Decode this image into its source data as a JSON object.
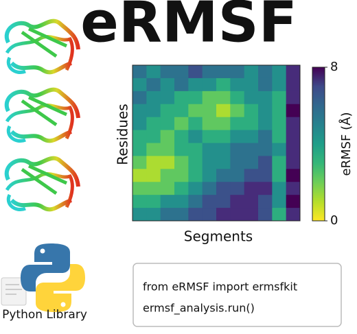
{
  "title": "eRMSF",
  "chart_data": {
    "type": "heatmap",
    "xlabel": "Segments",
    "ylabel": "Residues",
    "colorbar_label": "eRMSF (Å)",
    "zlim": [
      0,
      8
    ],
    "cticks": [
      0,
      8
    ],
    "colormap": "viridis_r",
    "values": [
      [
        5,
        4,
        5,
        5,
        6,
        5,
        5,
        5,
        4,
        5,
        4,
        7
      ],
      [
        4,
        5,
        4,
        5,
        4,
        4,
        3,
        4,
        4,
        5,
        4,
        7
      ],
      [
        5,
        4,
        4,
        3,
        3,
        2,
        2,
        3,
        4,
        4,
        3,
        7
      ],
      [
        4,
        4,
        3,
        3,
        2,
        2,
        1,
        2,
        3,
        4,
        3,
        8
      ],
      [
        4,
        3,
        3,
        2,
        3,
        2,
        2,
        3,
        3,
        4,
        3,
        7
      ],
      [
        3,
        3,
        2,
        3,
        4,
        3,
        3,
        4,
        4,
        5,
        3,
        7
      ],
      [
        3,
        2,
        2,
        3,
        3,
        4,
        4,
        5,
        5,
        5,
        4,
        7
      ],
      [
        2,
        1,
        1,
        2,
        3,
        4,
        4,
        5,
        5,
        6,
        3,
        7
      ],
      [
        1,
        1,
        2,
        2,
        3,
        4,
        5,
        5,
        6,
        6,
        3,
        8
      ],
      [
        2,
        2,
        2,
        3,
        4,
        5,
        6,
        6,
        7,
        7,
        4,
        7
      ],
      [
        3,
        3,
        4,
        4,
        5,
        6,
        6,
        7,
        7,
        6,
        4,
        8
      ],
      [
        4,
        4,
        5,
        5,
        6,
        6,
        7,
        7,
        7,
        6,
        3,
        7
      ]
    ]
  },
  "library_label": "Python Library",
  "code": [
    "from eRMSF import ermsfkit",
    "ermsf_analysis.run()"
  ]
}
